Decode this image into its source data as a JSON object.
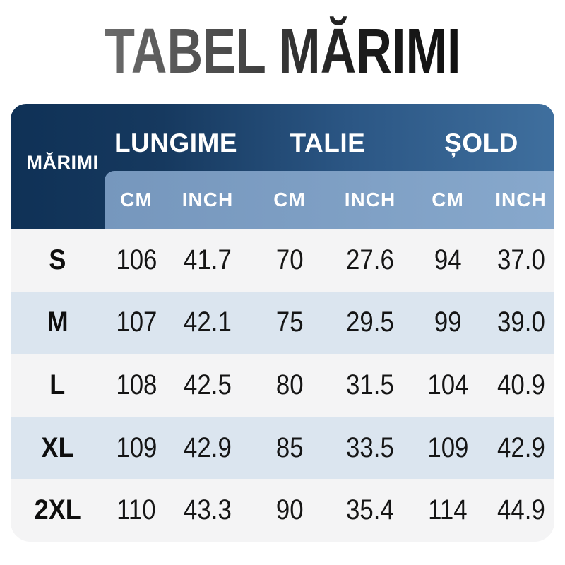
{
  "title": "TABEL MĂRIMI",
  "table": {
    "sizes_label": "MĂRIMI",
    "groups": [
      "LUNGIME",
      "TALIE",
      "ȘOLD"
    ],
    "units": [
      "CM",
      "INCH",
      "CM",
      "INCH",
      "CM",
      "INCH"
    ],
    "rows": [
      {
        "size": "S",
        "values": [
          "106",
          "41.7",
          "70",
          "27.6",
          "94",
          "37.0"
        ]
      },
      {
        "size": "M",
        "values": [
          "107",
          "42.1",
          "75",
          "29.5",
          "99",
          "39.0"
        ]
      },
      {
        "size": "L",
        "values": [
          "108",
          "42.5",
          "80",
          "31.5",
          "104",
          "40.9"
        ]
      },
      {
        "size": "XL",
        "values": [
          "109",
          "42.9",
          "85",
          "33.5",
          "109",
          "42.9"
        ]
      },
      {
        "size": "2XL",
        "values": [
          "110",
          "43.3",
          "90",
          "35.4",
          "114",
          "44.9"
        ]
      }
    ]
  },
  "chart_data": {
    "type": "table",
    "title": "TABEL MĂRIMI",
    "row_header": "MĂRIMI",
    "column_groups": [
      "LUNGIME",
      "TALIE",
      "ȘOLD"
    ],
    "columns": [
      "CM",
      "INCH",
      "CM",
      "INCH",
      "CM",
      "INCH"
    ],
    "rows": [
      [
        "S",
        106,
        41.7,
        70,
        27.6,
        94,
        37.0
      ],
      [
        "M",
        107,
        42.1,
        75,
        29.5,
        99,
        39.0
      ],
      [
        "L",
        108,
        42.5,
        80,
        31.5,
        104,
        40.9
      ],
      [
        "XL",
        109,
        42.9,
        85,
        33.5,
        109,
        42.9
      ],
      [
        "2XL",
        110,
        43.3,
        90,
        35.4,
        114,
        44.9
      ]
    ]
  },
  "colors": {
    "header_navy": "#0f3156",
    "header_blue": "#3f6f9e",
    "units_band_left": "#7697bd",
    "units_band_right": "#87a8cc",
    "row_gray": "#f4f4f5",
    "row_blue": "#dbe5ef",
    "title_gray": "#6b6b6b",
    "title_black": "#101010",
    "text_dark": "#151515"
  }
}
